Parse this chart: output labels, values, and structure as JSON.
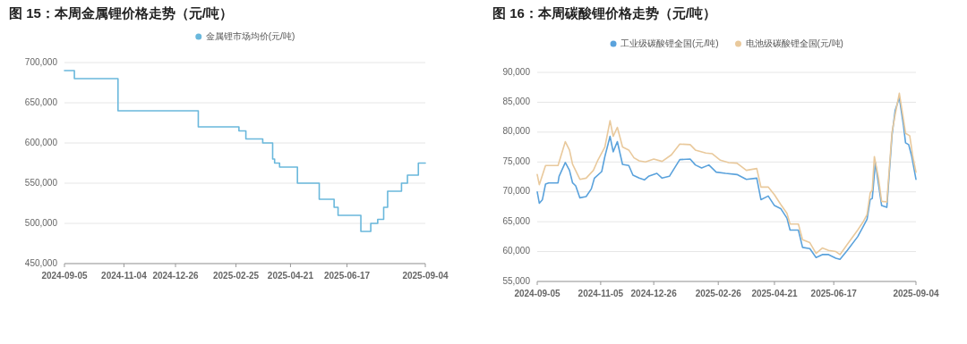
{
  "chart_data": [
    {
      "type": "step",
      "title": "图 15：本周金属锂价格走势（元/吨）",
      "legend": "top",
      "grid": "y",
      "marker": "none",
      "line_style": "solid",
      "xlim": [
        "2024-09-05",
        "2025-09-04"
      ],
      "xticks": [
        "2024-09-05",
        "2024-11-04",
        "2024-12-26",
        "2025-02-25",
        "2025-04-21",
        "2025-06-17",
        "2025-09-04"
      ],
      "ylim": [
        450000,
        700000
      ],
      "yticks": [
        {
          "value": 450000,
          "label": "450,000"
        },
        {
          "value": 500000,
          "label": "500,000"
        },
        {
          "value": 550000,
          "label": "550,000"
        },
        {
          "value": 600000,
          "label": "600,000"
        },
        {
          "value": 650000,
          "label": "650,000"
        },
        {
          "value": 700000,
          "label": "700,000"
        }
      ],
      "series": [
        {
          "name": "金属锂市场均价(元/吨)",
          "color": "#6ab8dc",
          "x": [
            "2024-09-05",
            "2024-09-15",
            "2024-10-29",
            "2025-01-18",
            "2025-02-28",
            "2025-03-07",
            "2025-03-24",
            "2025-04-03",
            "2025-04-05",
            "2025-04-10",
            "2025-04-28",
            "2025-05-20",
            "2025-06-04",
            "2025-06-08",
            "2025-07-01",
            "2025-07-11",
            "2025-07-18",
            "2025-07-24",
            "2025-07-28",
            "2025-08-11",
            "2025-08-17",
            "2025-08-28",
            "2025-09-04"
          ],
          "values": [
            690000,
            680000,
            640000,
            620000,
            615000,
            605000,
            600000,
            580000,
            575000,
            570000,
            550000,
            530000,
            520000,
            510000,
            490000,
            500000,
            505000,
            520000,
            540000,
            550000,
            560000,
            575000,
            575000
          ]
        }
      ]
    },
    {
      "type": "line",
      "title": "图 16：本周碳酸锂价格走势（元/吨）",
      "legend": "top",
      "grid": "y",
      "marker": "none",
      "line_style": "solid",
      "xlim": [
        "2024-09-05",
        "2025-09-04"
      ],
      "xticks": [
        "2024-09-05",
        "2024-11-05",
        "2024-12-26",
        "2025-02-26",
        "2025-04-21",
        "2025-06-17",
        "2025-09-04"
      ],
      "ylim": [
        55000,
        90000
      ],
      "yticks": [
        {
          "value": 55000,
          "label": "55,000"
        },
        {
          "value": 60000,
          "label": "60,000"
        },
        {
          "value": 65000,
          "label": "65,000"
        },
        {
          "value": 70000,
          "label": "70,000"
        },
        {
          "value": 75000,
          "label": "75,000"
        },
        {
          "value": 80000,
          "label": "80,000"
        },
        {
          "value": 85000,
          "label": "85,000"
        },
        {
          "value": 90000,
          "label": "90,000"
        }
      ],
      "series": [
        {
          "name": "工业级碳酸锂全国(元/吨)",
          "color": "#5aa2dc",
          "x": [
            "2024-09-05",
            "2024-09-07",
            "2024-09-10",
            "2024-09-13",
            "2024-09-16",
            "2024-09-25",
            "2024-09-26",
            "2024-10-02",
            "2024-10-06",
            "2024-10-09",
            "2024-10-12",
            "2024-10-16",
            "2024-10-22",
            "2024-10-27",
            "2024-10-30",
            "2024-11-06",
            "2024-11-09",
            "2024-11-14",
            "2024-11-17",
            "2024-11-21",
            "2024-11-26",
            "2024-12-02",
            "2024-12-06",
            "2024-12-12",
            "2024-12-17",
            "2024-12-21",
            "2024-12-29",
            "2025-01-03",
            "2025-01-10",
            "2025-01-20",
            "2025-01-30",
            "2025-02-04",
            "2025-02-10",
            "2025-02-17",
            "2025-02-24",
            "2025-03-05",
            "2025-03-16",
            "2025-03-25",
            "2025-04-04",
            "2025-04-08",
            "2025-04-15",
            "2025-04-21",
            "2025-04-27",
            "2025-05-03",
            "2025-05-06",
            "2025-05-14",
            "2025-05-18",
            "2025-05-25",
            "2025-05-31",
            "2025-06-06",
            "2025-06-12",
            "2025-06-19",
            "2025-06-23",
            "2025-06-30",
            "2025-07-10",
            "2025-07-15",
            "2025-07-19",
            "2025-07-22",
            "2025-07-24",
            "2025-07-27",
            "2025-07-30",
            "2025-08-02",
            "2025-08-07",
            "2025-08-12",
            "2025-08-15",
            "2025-08-19",
            "2025-08-23",
            "2025-08-25",
            "2025-08-28",
            "2025-08-31",
            "2025-09-04"
          ],
          "values": [
            70000,
            68100,
            68700,
            71300,
            71500,
            71500,
            72600,
            74900,
            73600,
            71500,
            71000,
            69000,
            69200,
            70500,
            72300,
            73400,
            75900,
            79300,
            76700,
            78400,
            74600,
            74400,
            72800,
            72300,
            72000,
            72600,
            73100,
            72300,
            72600,
            75400,
            75500,
            74500,
            74000,
            74500,
            73300,
            73100,
            72900,
            72100,
            72300,
            68700,
            69300,
            67700,
            67200,
            65600,
            63600,
            63600,
            60700,
            60500,
            59000,
            59500,
            59500,
            58900,
            58700,
            60200,
            62500,
            64100,
            65400,
            68700,
            68900,
            74900,
            71300,
            67700,
            67400,
            79500,
            83600,
            85800,
            81100,
            78200,
            77900,
            75900,
            72100
          ]
        },
        {
          "name": "电池级碳酸锂全国(元/吨)",
          "color": "#e9c99c",
          "x": [
            "2024-09-05",
            "2024-09-07",
            "2024-09-13",
            "2024-09-25",
            "2024-10-02",
            "2024-10-06",
            "2024-10-09",
            "2024-10-16",
            "2024-10-22",
            "2024-10-29",
            "2024-11-02",
            "2024-11-09",
            "2024-11-14",
            "2024-11-17",
            "2024-11-21",
            "2024-11-26",
            "2024-12-02",
            "2024-12-07",
            "2024-12-12",
            "2024-12-18",
            "2024-12-26",
            "2025-01-03",
            "2025-01-12",
            "2025-01-20",
            "2025-01-30",
            "2025-02-04",
            "2025-02-14",
            "2025-02-20",
            "2025-02-28",
            "2025-03-08",
            "2025-03-16",
            "2025-03-25",
            "2025-04-04",
            "2025-04-08",
            "2025-04-15",
            "2025-04-21",
            "2025-04-27",
            "2025-05-03",
            "2025-05-06",
            "2025-05-14",
            "2025-05-18",
            "2025-05-25",
            "2025-05-31",
            "2025-06-06",
            "2025-06-12",
            "2025-06-19",
            "2025-06-23",
            "2025-06-30",
            "2025-07-10",
            "2025-07-15",
            "2025-07-19",
            "2025-07-22",
            "2025-07-24",
            "2025-07-26",
            "2025-07-30",
            "2025-08-02",
            "2025-08-07",
            "2025-08-12",
            "2025-08-15",
            "2025-08-19",
            "2025-08-23",
            "2025-08-25",
            "2025-08-29",
            "2025-09-01",
            "2025-09-04"
          ],
          "values": [
            72900,
            71200,
            74400,
            74400,
            78400,
            77000,
            74600,
            72100,
            72300,
            73600,
            75200,
            77500,
            81900,
            79300,
            80800,
            77500,
            77000,
            75700,
            75200,
            75000,
            75500,
            75100,
            76200,
            78000,
            77900,
            77000,
            76500,
            76400,
            75300,
            74900,
            74800,
            73600,
            73900,
            70800,
            70800,
            69500,
            67900,
            66400,
            64600,
            64600,
            62000,
            61500,
            59700,
            60600,
            60200,
            60000,
            59500,
            61200,
            63600,
            64900,
            66200,
            69800,
            70300,
            75900,
            72300,
            68400,
            68300,
            80000,
            82900,
            86500,
            82100,
            79800,
            79400,
            75900,
            73300
          ]
        }
      ]
    }
  ]
}
